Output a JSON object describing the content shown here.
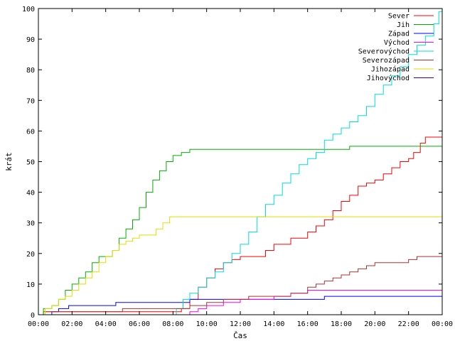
{
  "chart_data": {
    "type": "line",
    "xlabel": "Čas",
    "ylabel": "krát",
    "xlim": [
      0,
      24
    ],
    "ylim": [
      0,
      100
    ],
    "x_ticks": [
      "00:00",
      "02:00",
      "04:00",
      "06:00",
      "08:00",
      "10:00",
      "12:00",
      "14:00",
      "16:00",
      "18:00",
      "20:00",
      "22:00",
      "00:00"
    ],
    "y_ticks": [
      0,
      10,
      20,
      30,
      40,
      50,
      60,
      70,
      80,
      90,
      100
    ],
    "grid": false,
    "legend_position": "top-right",
    "series": [
      {
        "name": "Sever",
        "color": "#ff0000",
        "points": [
          [
            0,
            0
          ],
          [
            0.3,
            1
          ],
          [
            3,
            1
          ],
          [
            5,
            1
          ],
          [
            8,
            1
          ],
          [
            8.5,
            2
          ],
          [
            9,
            5
          ],
          [
            9.5,
            9
          ],
          [
            10,
            12
          ],
          [
            10.5,
            15
          ],
          [
            11,
            17
          ],
          [
            11.5,
            18
          ],
          [
            12,
            19
          ],
          [
            13,
            19
          ],
          [
            13.5,
            21
          ],
          [
            14,
            23
          ],
          [
            15,
            25
          ],
          [
            16,
            27
          ],
          [
            16.5,
            29
          ],
          [
            17,
            31
          ],
          [
            17.5,
            34
          ],
          [
            18,
            37
          ],
          [
            18.5,
            39
          ],
          [
            19,
            42
          ],
          [
            19.5,
            43
          ],
          [
            20,
            44
          ],
          [
            20.5,
            46
          ],
          [
            21,
            48
          ],
          [
            21.5,
            50
          ],
          [
            22,
            51
          ],
          [
            22.3,
            53
          ],
          [
            22.7,
            56
          ],
          [
            23,
            58
          ],
          [
            24,
            58
          ]
        ]
      },
      {
        "name": "Jih",
        "color": "#00b000",
        "points": [
          [
            0,
            0
          ],
          [
            0.3,
            2
          ],
          [
            0.8,
            3
          ],
          [
            1.2,
            5
          ],
          [
            1.6,
            8
          ],
          [
            2,
            10
          ],
          [
            2.4,
            12
          ],
          [
            2.8,
            14
          ],
          [
            3.2,
            17
          ],
          [
            3.6,
            19
          ],
          [
            4,
            19
          ],
          [
            4.4,
            21
          ],
          [
            4.8,
            25
          ],
          [
            5.2,
            28
          ],
          [
            5.6,
            31
          ],
          [
            6,
            35
          ],
          [
            6.4,
            40
          ],
          [
            6.8,
            44
          ],
          [
            7.2,
            47
          ],
          [
            7.6,
            50
          ],
          [
            8,
            52
          ],
          [
            8.5,
            53
          ],
          [
            9,
            54
          ],
          [
            12,
            54
          ],
          [
            15,
            54
          ],
          [
            18,
            54
          ],
          [
            18.5,
            55
          ],
          [
            24,
            55
          ]
        ]
      },
      {
        "name": "Západ",
        "color": "#0000ff",
        "points": [
          [
            0,
            0
          ],
          [
            0.8,
            1
          ],
          [
            1.2,
            2
          ],
          [
            1.8,
            3
          ],
          [
            4,
            3
          ],
          [
            4.6,
            4
          ],
          [
            8,
            4
          ],
          [
            9,
            5
          ],
          [
            13,
            5
          ],
          [
            16,
            5
          ],
          [
            17,
            6
          ],
          [
            24,
            6
          ]
        ]
      },
      {
        "name": "Východ",
        "color": "#ff00ff",
        "points": [
          [
            0,
            0
          ],
          [
            8.5,
            0
          ],
          [
            9,
            1
          ],
          [
            9.5,
            2
          ],
          [
            10,
            3
          ],
          [
            11,
            4
          ],
          [
            12,
            5
          ],
          [
            13,
            5
          ],
          [
            14,
            6
          ],
          [
            15,
            7
          ],
          [
            16,
            8
          ],
          [
            24,
            8
          ]
        ]
      },
      {
        "name": "Severovýchod",
        "color": "#00dddd",
        "points": [
          [
            0,
            0
          ],
          [
            7.8,
            0
          ],
          [
            8.2,
            2
          ],
          [
            8.6,
            5
          ],
          [
            9,
            7
          ],
          [
            9.5,
            9
          ],
          [
            10,
            12
          ],
          [
            10.5,
            14
          ],
          [
            11,
            17
          ],
          [
            11.5,
            20
          ],
          [
            12,
            23
          ],
          [
            12.5,
            27
          ],
          [
            13,
            32
          ],
          [
            13.5,
            36
          ],
          [
            14,
            39
          ],
          [
            14.5,
            43
          ],
          [
            15,
            46
          ],
          [
            15.5,
            49
          ],
          [
            16,
            51
          ],
          [
            16.5,
            53
          ],
          [
            17,
            57
          ],
          [
            17.5,
            59
          ],
          [
            18,
            61
          ],
          [
            18.5,
            63
          ],
          [
            19,
            65
          ],
          [
            19.5,
            68
          ],
          [
            20,
            72
          ],
          [
            20.5,
            75
          ],
          [
            21,
            78
          ],
          [
            21.5,
            81
          ],
          [
            22,
            85
          ],
          [
            22.5,
            88
          ],
          [
            23,
            91
          ],
          [
            23.5,
            95
          ],
          [
            23.8,
            99
          ],
          [
            24,
            100
          ]
        ]
      },
      {
        "name": "Severozápad",
        "color": "#b03030",
        "points": [
          [
            0,
            0
          ],
          [
            0.4,
            1
          ],
          [
            3,
            1
          ],
          [
            5,
            2
          ],
          [
            8,
            2
          ],
          [
            9,
            3
          ],
          [
            10,
            4
          ],
          [
            11,
            5
          ],
          [
            12,
            5
          ],
          [
            12.5,
            6
          ],
          [
            14,
            6
          ],
          [
            15,
            7
          ],
          [
            16,
            9
          ],
          [
            16.5,
            10
          ],
          [
            17,
            11
          ],
          [
            17.5,
            12
          ],
          [
            18,
            13
          ],
          [
            18.5,
            14
          ],
          [
            19,
            15
          ],
          [
            19.5,
            16
          ],
          [
            20,
            17
          ],
          [
            21,
            17
          ],
          [
            22,
            18
          ],
          [
            22.5,
            19
          ],
          [
            24,
            19
          ]
        ]
      },
      {
        "name": "Jihozápad",
        "color": "#e0e000",
        "points": [
          [
            0,
            0
          ],
          [
            0.4,
            2
          ],
          [
            0.8,
            3
          ],
          [
            1.2,
            5
          ],
          [
            1.6,
            6
          ],
          [
            2,
            8
          ],
          [
            2.4,
            10
          ],
          [
            2.8,
            12
          ],
          [
            3.2,
            14
          ],
          [
            3.6,
            17
          ],
          [
            4,
            19
          ],
          [
            4.4,
            21
          ],
          [
            4.8,
            23
          ],
          [
            5.2,
            24
          ],
          [
            5.6,
            25
          ],
          [
            6,
            26
          ],
          [
            6.4,
            26
          ],
          [
            7,
            28
          ],
          [
            7.4,
            30
          ],
          [
            7.8,
            32
          ],
          [
            8,
            32
          ],
          [
            12,
            32
          ],
          [
            18,
            32
          ],
          [
            24,
            32
          ]
        ]
      },
      {
        "name": "Jihovýchod",
        "color": "#400080",
        "points": [
          [
            0,
            0
          ],
          [
            24,
            0
          ]
        ]
      }
    ]
  }
}
